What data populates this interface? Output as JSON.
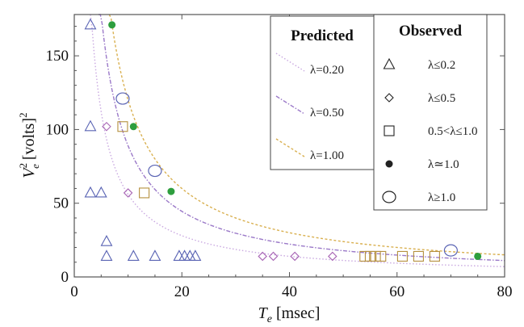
{
  "chart_data": {
    "type": "scatter",
    "xlabel": {
      "var": "T",
      "sub": "e",
      "unit": "[msec]"
    },
    "ylabel": {
      "var": "V",
      "sub": "e",
      "sup": "2",
      "unit": "[volts]",
      "unit_sup": "2"
    },
    "xlim": [
      0,
      80
    ],
    "ylim": [
      0,
      178
    ],
    "x_ticks": [
      0,
      20,
      40,
      60,
      80
    ],
    "y_ticks": [
      0,
      50,
      100,
      150
    ],
    "grid": false,
    "predicted": {
      "title": "Predicted",
      "curves": [
        {
          "label": "λ=0.20",
          "color": "#c9a8e0",
          "dash": "1.5 2.5",
          "k": 560,
          "x_range": [
            3,
            80
          ]
        },
        {
          "label": "λ=0.50",
          "color": "#9a78c8",
          "dash": "5 2 1.5 2",
          "k": 890,
          "x_range": [
            4.5,
            80
          ]
        },
        {
          "label": "λ=1.00",
          "color": "#d9b050",
          "dash": "3 2.5",
          "k": 1200,
          "x_range": [
            6.5,
            80
          ]
        }
      ]
    },
    "observed": {
      "title": "Observed",
      "series": [
        {
          "label": "λ≤0.2",
          "marker": "triangle",
          "color": "#5a64b4",
          "points": [
            [
              3,
              171
            ],
            [
              3,
              102
            ],
            [
              3,
              57
            ],
            [
              5,
              57
            ],
            [
              6,
              24
            ],
            [
              6,
              14
            ],
            [
              11,
              14
            ],
            [
              15,
              14
            ],
            [
              19.5,
              14
            ],
            [
              20.5,
              14
            ],
            [
              21.5,
              14
            ],
            [
              22.5,
              14
            ]
          ]
        },
        {
          "label": "λ≤0.5",
          "marker": "diamond",
          "color": "#a865b5",
          "points": [
            [
              6,
              102
            ],
            [
              10,
              57
            ],
            [
              35,
              14
            ],
            [
              37,
              14
            ],
            [
              41,
              14
            ],
            [
              48,
              14
            ]
          ]
        },
        {
          "label": "0.5<λ≤1.0",
          "marker": "square",
          "color": "#b5903e",
          "points": [
            [
              9,
              102
            ],
            [
              13,
              57
            ],
            [
              54,
              14
            ],
            [
              55,
              14
            ],
            [
              56,
              14
            ],
            [
              57,
              14
            ],
            [
              61,
              14
            ],
            [
              64,
              14
            ],
            [
              67,
              14
            ]
          ]
        },
        {
          "label": "λ≃1.0",
          "marker": "dot",
          "color": "#2e9e3e",
          "points": [
            [
              7,
              171
            ],
            [
              11,
              102
            ],
            [
              18,
              58
            ],
            [
              75,
              14
            ]
          ]
        },
        {
          "label": "λ≥1.0",
          "marker": "circle",
          "color": "#5a64b4",
          "points": [
            [
              9,
              121
            ],
            [
              15,
              72
            ],
            [
              70,
              18
            ]
          ]
        }
      ]
    }
  }
}
